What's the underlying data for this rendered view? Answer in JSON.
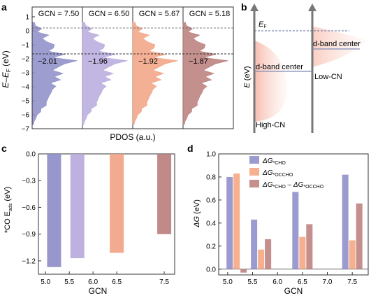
{
  "panels": {
    "a": {
      "label": "a",
      "ylabel": "E–E",
      "ylabel_sub": "F",
      "ylabel_unit": " (eV)",
      "xlabel": "PDOS (a.u.)",
      "yticks": [
        "1",
        "0",
        "−1",
        "−2",
        "−3",
        "−4",
        "−5",
        "−6",
        "−7"
      ],
      "columns": [
        {
          "gcn": "GCN = 7.50",
          "center": "−2.01",
          "color": "#8c8cc8"
        },
        {
          "gcn": "GCN = 6.50",
          "center": "−1.96",
          "color": "#b7a9dd"
        },
        {
          "gcn": "GCN = 5.67",
          "center": "−1.92",
          "color": "#f2a283"
        },
        {
          "gcn": "GCN = 5.18",
          "center": "−1.87",
          "color": "#b87d7a"
        }
      ]
    },
    "b": {
      "label": "b",
      "ef": "E",
      "ef_sub": "F",
      "yaxis": "E (eV)",
      "dband_left": "d-band center",
      "dband_right": "d-band center",
      "high_cn": "High-CN",
      "low_cn": "Low-CN"
    },
    "c": {
      "label": "c"
    },
    "d": {
      "label": "d"
    }
  },
  "chart_data": [
    {
      "panel": "c",
      "type": "bar",
      "xlabel": "GCN",
      "ylabel": "*CO E",
      "ylabel_sub": "ads",
      "ylabel_unit": " (eV)",
      "x": [
        5.18,
        5.67,
        6.5,
        7.5
      ],
      "values": [
        -1.27,
        -1.17,
        -1.11,
        -0.9
      ],
      "colors": [
        "#8c8cc8",
        "#b7a9dd",
        "#f2a283",
        "#b87d7a"
      ],
      "xlim": [
        5.0,
        7.5
      ],
      "ylim": [
        -1.35,
        0.0
      ],
      "xticks": [
        "5.0",
        "5.5",
        "6.0",
        "6.5",
        "7.5"
      ],
      "xtick_values": [
        5.0,
        5.5,
        6.0,
        6.5,
        7.5
      ],
      "yticks": [
        "0.0",
        "−0.3",
        "−0.6",
        "−0.9",
        "−1.2"
      ],
      "ytick_values": [
        0.0,
        -0.3,
        -0.6,
        -0.9,
        -1.2
      ]
    },
    {
      "panel": "d",
      "type": "bar",
      "xlabel": "GCN",
      "ylabel": "ΔG (eV)",
      "categories": [
        "5.18",
        "5.67",
        "6.50",
        "7.50"
      ],
      "x": [
        5.18,
        5.67,
        6.5,
        7.5
      ],
      "series": [
        {
          "name": "ΔG*CHO",
          "label": "ΔG",
          "sub": "*CHO",
          "color": "#9c9bd0",
          "values": [
            0.8,
            0.43,
            0.67,
            0.82
          ]
        },
        {
          "name": "ΔG*OCCHO",
          "label": "ΔG",
          "sub": "*OCCHO",
          "color": "#f6b08f",
          "values": [
            0.83,
            0.17,
            0.28,
            0.25
          ]
        },
        {
          "name": "ΔG*CHO – ΔG*OCCHO",
          "label": "ΔG",
          "sub": "*CHO",
          "mid": " – ΔG",
          "sub2": "*OCCHO",
          "color": "#c48f8c",
          "values": [
            -0.03,
            0.26,
            0.39,
            0.57
          ]
        }
      ],
      "xlim": [
        5.0,
        7.5
      ],
      "ylim": [
        -0.05,
        1.0
      ],
      "xticks": [
        "5.0",
        "5.5",
        "6.0",
        "6.5",
        "7.0",
        "7.5"
      ],
      "xtick_values": [
        5.0,
        5.5,
        6.0,
        6.5,
        7.0,
        7.5
      ],
      "yticks": [
        "0.0",
        "0.2",
        "0.4",
        "0.6",
        "0.8",
        "1.0"
      ],
      "ytick_values": [
        0.0,
        0.2,
        0.4,
        0.6,
        0.8,
        1.0
      ],
      "legend": "top-left"
    }
  ]
}
